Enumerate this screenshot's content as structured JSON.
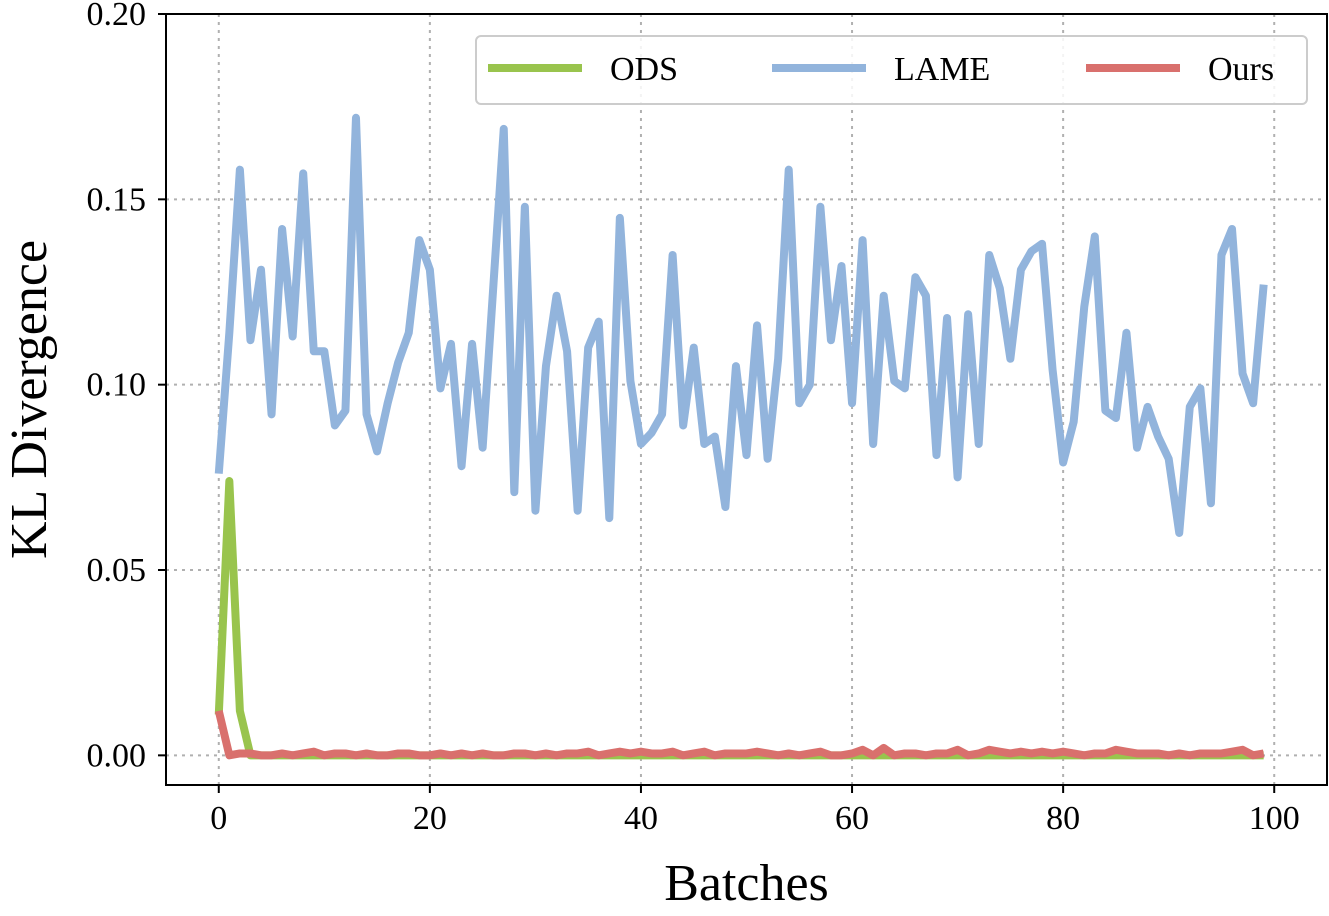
{
  "chart_data": {
    "type": "line",
    "title": "",
    "xlabel": "Batches",
    "ylabel": "KL Divergence",
    "xlim": [
      -5,
      105
    ],
    "ylim": [
      -0.008,
      0.2
    ],
    "xticks": [
      0,
      20,
      40,
      60,
      80,
      100
    ],
    "yticks": [
      0.0,
      0.05,
      0.1,
      0.15,
      0.2
    ],
    "xtick_labels": [
      "0",
      "20",
      "40",
      "60",
      "80",
      "100"
    ],
    "ytick_labels": [
      "0.00",
      "0.05",
      "0.10",
      "0.15",
      "0.20"
    ],
    "grid": true,
    "legend_position": "top-right",
    "series": [
      {
        "name": "ODS",
        "color": "#99c44d",
        "values": [
          0.011,
          0.074,
          0.012,
          0.0,
          0.0,
          0.0,
          0.0,
          0.0,
          0.0,
          0.0,
          0.0,
          0.0,
          0.0,
          0.0,
          0.0,
          0.0,
          0.0,
          0.0,
          0.0,
          0.0,
          0.0,
          0.0,
          0.0,
          0.0,
          0.0,
          0.0,
          0.0,
          0.0,
          0.0,
          0.0,
          0.0,
          0.0,
          0.0,
          0.0,
          0.0,
          0.0,
          0.0,
          0.0,
          0.0,
          0.0,
          0.0,
          0.0,
          0.0,
          0.0,
          0.0,
          0.0,
          0.0,
          0.0,
          0.0,
          0.0,
          0.0,
          0.0,
          0.0,
          0.0,
          0.0,
          0.0,
          0.0,
          0.0,
          0.0,
          0.0,
          0.0,
          0.0,
          0.0,
          0.0,
          0.0,
          0.0,
          0.0,
          0.0,
          0.0,
          0.0,
          0.0,
          0.0,
          0.0,
          0.0,
          0.0,
          0.0,
          0.0,
          0.0,
          0.0,
          0.0,
          0.0,
          0.0,
          0.0,
          0.0,
          0.0,
          0.0,
          0.0,
          0.0,
          0.0,
          0.0,
          0.0,
          0.0,
          0.0,
          0.0,
          0.0,
          0.0,
          0.0,
          0.0,
          0.0,
          0.0
        ]
      },
      {
        "name": "LAME",
        "color": "#92b4dc",
        "values": [
          0.076,
          0.114,
          0.158,
          0.112,
          0.131,
          0.092,
          0.142,
          0.113,
          0.157,
          0.109,
          0.109,
          0.089,
          0.093,
          0.172,
          0.092,
          0.082,
          0.095,
          0.106,
          0.114,
          0.139,
          0.131,
          0.099,
          0.111,
          0.078,
          0.111,
          0.083,
          0.126,
          0.169,
          0.071,
          0.148,
          0.066,
          0.105,
          0.124,
          0.109,
          0.066,
          0.11,
          0.117,
          0.064,
          0.145,
          0.101,
          0.084,
          0.087,
          0.092,
          0.135,
          0.089,
          0.11,
          0.084,
          0.086,
          0.067,
          0.105,
          0.081,
          0.116,
          0.08,
          0.107,
          0.158,
          0.095,
          0.1,
          0.148,
          0.112,
          0.132,
          0.095,
          0.139,
          0.084,
          0.124,
          0.101,
          0.099,
          0.129,
          0.124,
          0.081,
          0.118,
          0.075,
          0.119,
          0.084,
          0.135,
          0.126,
          0.107,
          0.131,
          0.136,
          0.138,
          0.104,
          0.079,
          0.09,
          0.121,
          0.14,
          0.093,
          0.091,
          0.114,
          0.083,
          0.094,
          0.086,
          0.08,
          0.06,
          0.094,
          0.099,
          0.068,
          0.135,
          0.142,
          0.103,
          0.095,
          0.127
        ]
      },
      {
        "name": "Ours",
        "color": "#d9706d",
        "values": [
          0.012,
          0.0,
          0.0005,
          0.0005,
          0.0,
          0.0,
          0.0005,
          0.0,
          0.0005,
          0.001,
          0.0,
          0.0005,
          0.0005,
          0.0,
          0.0005,
          0.0,
          0.0,
          0.0005,
          0.0005,
          0.0,
          0.0,
          0.0005,
          0.0,
          0.0005,
          0.0,
          0.0005,
          0.0,
          0.0,
          0.0005,
          0.0005,
          0.0,
          0.0005,
          0.0,
          0.0005,
          0.0005,
          0.001,
          0.0,
          0.0005,
          0.001,
          0.0005,
          0.001,
          0.0005,
          0.0005,
          0.001,
          0.0,
          0.0005,
          0.001,
          0.0,
          0.0005,
          0.0005,
          0.0005,
          0.001,
          0.0005,
          0.0,
          0.0005,
          0.0,
          0.0005,
          0.001,
          0.0,
          0.0,
          0.0005,
          0.0015,
          0.0,
          0.002,
          0.0,
          0.0005,
          0.0005,
          0.0,
          0.0005,
          0.0005,
          0.0015,
          0.0,
          0.0005,
          0.0015,
          0.001,
          0.0005,
          0.001,
          0.0005,
          0.001,
          0.0005,
          0.001,
          0.0005,
          0.0,
          0.0005,
          0.0005,
          0.0015,
          0.001,
          0.0005,
          0.0005,
          0.0005,
          0.0,
          0.0005,
          0.0,
          0.0005,
          0.0005,
          0.0005,
          0.001,
          0.0015,
          0.0,
          0.0005
        ]
      }
    ]
  }
}
